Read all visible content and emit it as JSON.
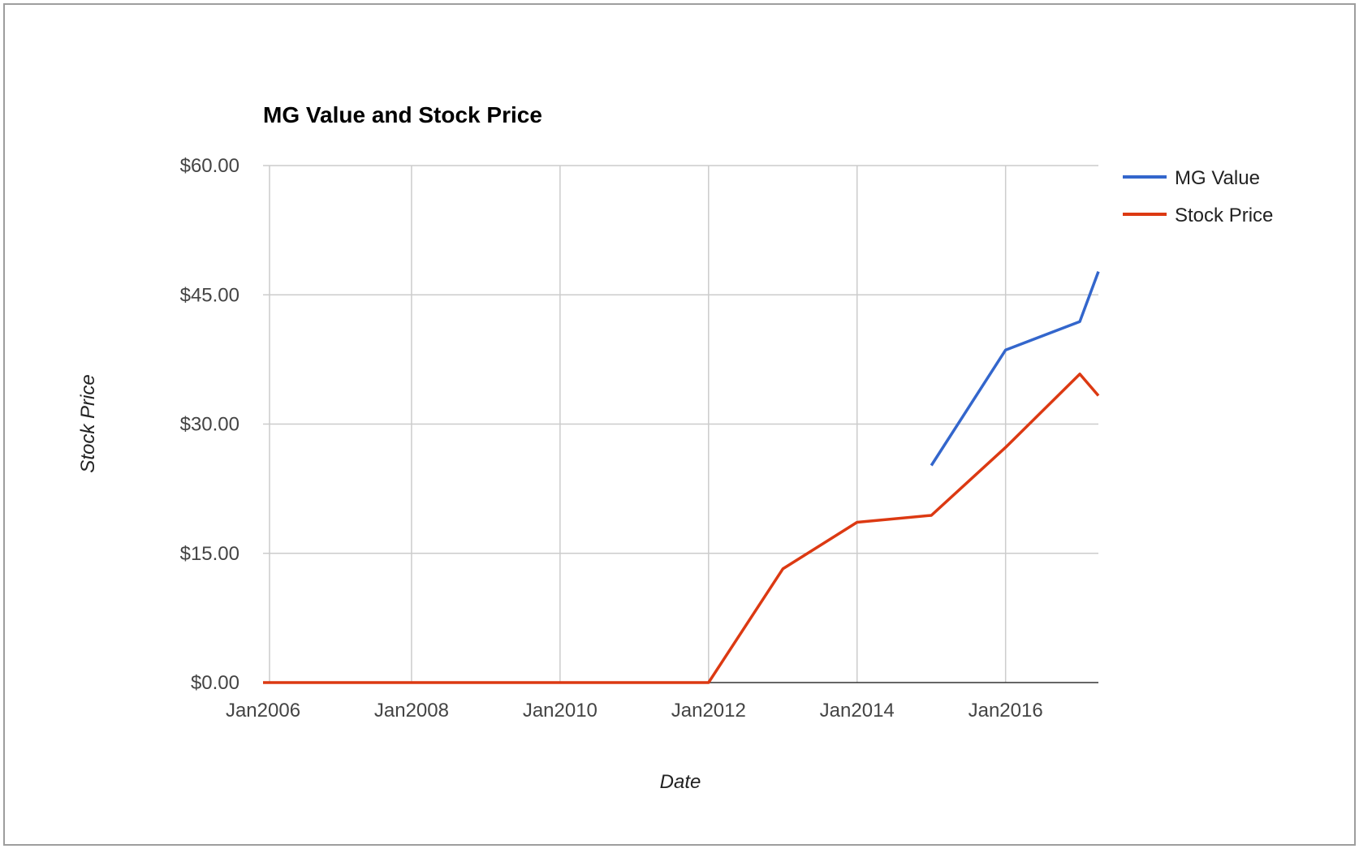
{
  "chart_data": {
    "type": "line",
    "title": "MG Value and Stock Price",
    "xlabel": "Date",
    "ylabel": "Stock Price",
    "x_ticks": [
      "Jan2006",
      "Jan2008",
      "Jan2010",
      "Jan2012",
      "Jan2014",
      "Jan2016"
    ],
    "x_range": [
      "2006-01",
      "2017-04"
    ],
    "y_ticks": [
      "$0.00",
      "$15.00",
      "$30.00",
      "$45.00",
      "$60.00"
    ],
    "ylim": [
      0,
      60
    ],
    "grid": true,
    "legend_position": "right",
    "series": [
      {
        "name": "MG Value",
        "color": "#3366cc",
        "points": [
          {
            "x": "2015-01",
            "y": 25.2
          },
          {
            "x": "2016-01",
            "y": 38.6
          },
          {
            "x": "2017-01",
            "y": 41.9
          },
          {
            "x": "2017-04",
            "y": 47.7
          }
        ]
      },
      {
        "name": "Stock Price",
        "color": "#dc3912",
        "points": [
          {
            "x": "2006-01",
            "y": 0
          },
          {
            "x": "2007-01",
            "y": 0
          },
          {
            "x": "2008-01",
            "y": 0
          },
          {
            "x": "2009-01",
            "y": 0
          },
          {
            "x": "2010-01",
            "y": 0
          },
          {
            "x": "2011-01",
            "y": 0
          },
          {
            "x": "2012-01",
            "y": 0
          },
          {
            "x": "2013-01",
            "y": 13.2
          },
          {
            "x": "2014-01",
            "y": 18.6
          },
          {
            "x": "2015-01",
            "y": 19.4
          },
          {
            "x": "2016-01",
            "y": 27.3
          },
          {
            "x": "2017-01",
            "y": 35.8
          },
          {
            "x": "2017-04",
            "y": 33.3
          }
        ]
      }
    ]
  }
}
